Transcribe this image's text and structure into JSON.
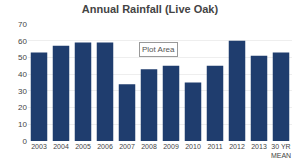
{
  "chart_data": {
    "type": "bar",
    "title": "Annual Rainfall (Live Oak)",
    "categories": [
      "2003",
      "2004",
      "2005",
      "2006",
      "2007",
      "2008",
      "2009",
      "2010",
      "2011",
      "2012",
      "2013",
      "30 YR\nMEAN"
    ],
    "values": [
      53,
      57,
      59,
      59,
      34,
      43,
      45,
      35,
      45,
      60,
      51,
      53
    ],
    "color": "#1F3D6E",
    "ylim": [
      0,
      70
    ],
    "yticks": [
      0,
      10,
      20,
      30,
      40,
      50,
      60,
      70
    ],
    "grid": true,
    "annotation": "Plot Area"
  }
}
